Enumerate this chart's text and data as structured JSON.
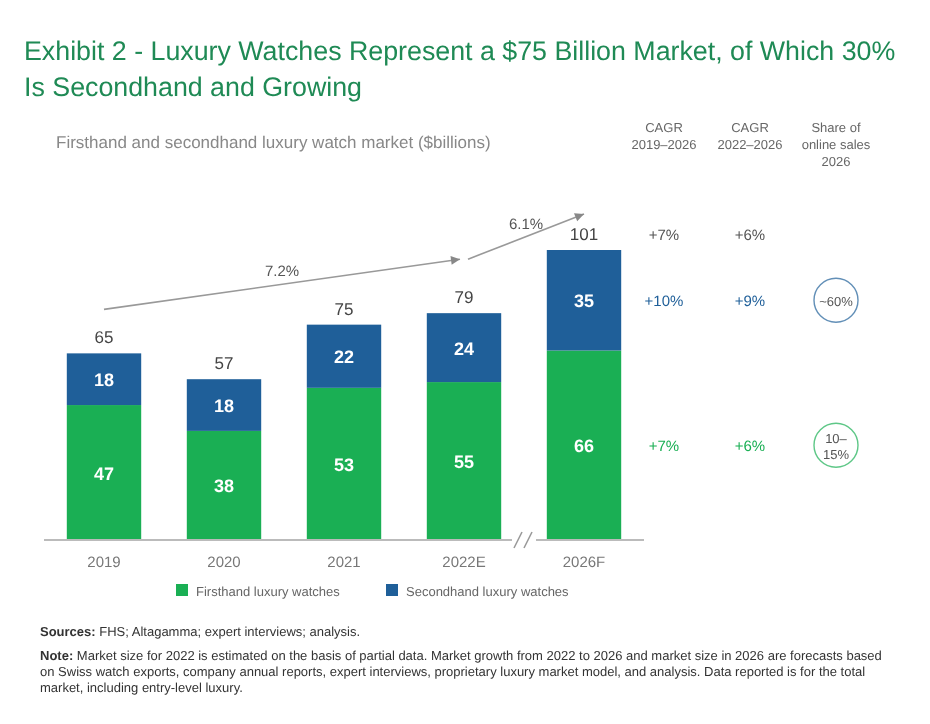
{
  "chart_data": {
    "type": "bar",
    "title": "Exhibit 2 - Luxury Watches Represent a $75 Billion Market, of Which 30%\nIs Secondhand and Growing",
    "subtitle": "Firsthand and secondhand luxury watch market ($billions)",
    "categories": [
      "2019",
      "2020",
      "2021",
      "2022E",
      "2026F"
    ],
    "series": [
      {
        "name": "Firsthand luxury watches",
        "color": "#1aaf54",
        "values": [
          47,
          38,
          53,
          55,
          66
        ]
      },
      {
        "name": "Secondhand luxury watches",
        "color": "#1f5f99",
        "values": [
          18,
          18,
          22,
          24,
          35
        ]
      }
    ],
    "stacked": true,
    "data_labels": true,
    "totals": [
      "65",
      "57",
      "75",
      "79",
      "101"
    ],
    "tick_labels": "x",
    "legend": "bottom",
    "annotations": [
      "7.2%",
      "6.1%",
      "CAGR\n2019–2026",
      "CAGR\n2022–2026",
      "Share of\nonline sales\n2026",
      "+7%",
      "+6%",
      "+10%",
      "+9%",
      "~60%",
      "+7%",
      "+6%",
      "10–\n15%",
      "Sources: FHS; Altagamma; expert interviews; analysis.",
      "Note: Market size for 2022 is estimated on the basis of partial data. Market growth from 2022 to 2026 and market size in 2026 are forecasts based on Swiss watch exports, company annual reports, expert interviews, proprietary luxury market model, and analysis. Data reported is for the total market, including entry-level luxury."
    ]
  }
}
